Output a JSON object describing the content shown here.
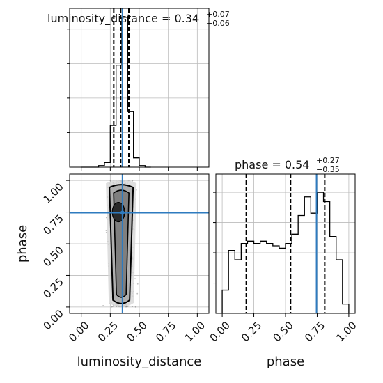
{
  "chart_data": [
    {
      "panel": "luminosity_distance marginal",
      "type": "histogram",
      "parameter": "luminosity_distance",
      "title": {
        "prefix": "luminosity_distance = ",
        "value": "0.34",
        "plus": "+0.07",
        "minus": "−0.06"
      },
      "xlim": [
        -0.1,
        1.1
      ],
      "bins": [
        0.0,
        0.05,
        0.1,
        0.15,
        0.2,
        0.25,
        0.3,
        0.35,
        0.4,
        0.45,
        0.5,
        0.55,
        0.6
      ],
      "values": [
        0,
        0,
        0,
        1,
        3,
        27,
        66,
        97,
        36,
        6,
        1,
        0
      ],
      "quantiles": [
        0.28,
        0.34,
        0.41
      ],
      "truth": 0.355
    },
    {
      "panel": "phase marginal",
      "type": "histogram",
      "parameter": "phase",
      "title": {
        "prefix": "phase = ",
        "value": "0.54",
        "plus": "+0.27",
        "minus": "−0.35"
      },
      "xlim": [
        -0.05,
        1.05
      ],
      "bins": [
        0.0,
        0.05,
        0.1,
        0.15,
        0.2,
        0.25,
        0.3,
        0.35,
        0.4,
        0.45,
        0.5,
        0.55,
        0.6,
        0.65,
        0.7,
        0.75,
        0.8,
        0.85,
        0.9,
        0.95,
        1.0
      ],
      "values": [
        10,
        27,
        23,
        30,
        31,
        30,
        31,
        30,
        29,
        28,
        30,
        34,
        42,
        50,
        43,
        52,
        48,
        33,
        23,
        4
      ],
      "quantiles": [
        0.19,
        0.54,
        0.81
      ],
      "truth": 0.745
    },
    {
      "panel": "joint",
      "type": "scatter",
      "xlabel": "luminosity_distance",
      "ylabel": "phase",
      "xlim": [
        -0.1,
        1.1
      ],
      "ylim": [
        -0.05,
        1.05
      ],
      "xticks": [
        "0.00",
        "0.25",
        "0.50",
        "0.75",
        "1.00"
      ],
      "yticks": [
        "0.00",
        "0.25",
        "0.50",
        "0.75",
        "1.00"
      ],
      "truth": [
        0.355,
        0.745
      ]
    }
  ],
  "bottom_xlabel_right": "phase",
  "colors": {
    "truth": "#2e7bbf",
    "hist": "#000000",
    "grid": "#bbbbbb"
  }
}
